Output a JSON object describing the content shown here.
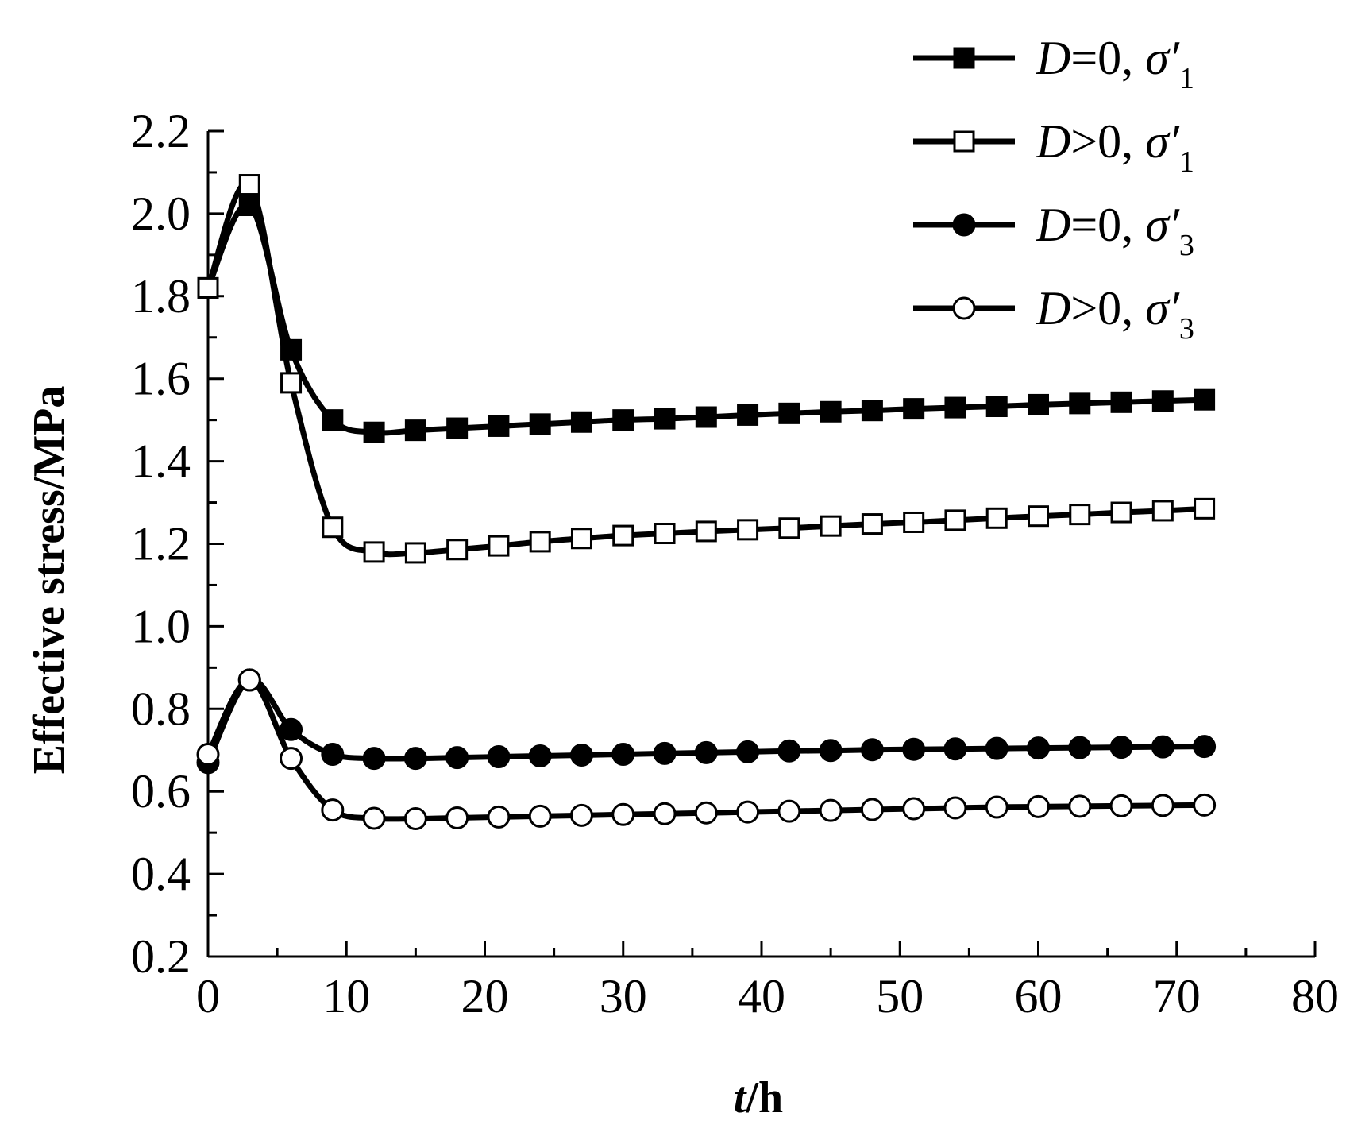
{
  "chart_data": {
    "type": "line",
    "xlabel_italic": "t",
    "xlabel_rest": "/h",
    "ylabel": "Effective stress/MPa",
    "xlim": [
      0,
      80
    ],
    "ylim": [
      0.2,
      2.2
    ],
    "xticks": [
      "0",
      "10",
      "20",
      "30",
      "40",
      "50",
      "60",
      "70",
      "80"
    ],
    "yticks": [
      "0.2",
      "0.4",
      "0.6",
      "0.8",
      "1.0",
      "1.2",
      "1.4",
      "1.6",
      "1.8",
      "2.0",
      "2.2"
    ],
    "grid": false,
    "legend_position": "top-right",
    "x": [
      0,
      3,
      6,
      9,
      12,
      15,
      18,
      21,
      24,
      27,
      30,
      33,
      36,
      39,
      42,
      45,
      48,
      51,
      54,
      57,
      60,
      63,
      66,
      69,
      72
    ],
    "series": [
      {
        "legend_var": "D",
        "legend_op": "=0, ",
        "legend_sym": "σ′",
        "legend_sub": "1",
        "marker": "square-filled",
        "values": [
          1.82,
          2.02,
          1.67,
          1.5,
          1.47,
          1.475,
          1.48,
          1.485,
          1.49,
          1.495,
          1.5,
          1.503,
          1.507,
          1.512,
          1.516,
          1.52,
          1.523,
          1.527,
          1.53,
          1.533,
          1.537,
          1.54,
          1.543,
          1.546,
          1.549
        ]
      },
      {
        "legend_var": "D",
        "legend_op": ">0, ",
        "legend_sym": "σ′",
        "legend_sub": "1",
        "marker": "square-open",
        "values": [
          1.82,
          2.07,
          1.59,
          1.24,
          1.18,
          1.178,
          1.186,
          1.195,
          1.205,
          1.213,
          1.22,
          1.225,
          1.23,
          1.234,
          1.238,
          1.243,
          1.248,
          1.252,
          1.257,
          1.262,
          1.267,
          1.271,
          1.276,
          1.28,
          1.285
        ]
      },
      {
        "legend_var": "D",
        "legend_op": "=0, ",
        "legend_sym": "σ′",
        "legend_sub": "3",
        "marker": "circle-filled",
        "values": [
          0.67,
          0.87,
          0.75,
          0.69,
          0.68,
          0.68,
          0.682,
          0.684,
          0.686,
          0.688,
          0.69,
          0.692,
          0.694,
          0.696,
          0.698,
          0.699,
          0.701,
          0.702,
          0.703,
          0.704,
          0.705,
          0.706,
          0.707,
          0.708,
          0.709
        ]
      },
      {
        "legend_var": "D",
        "legend_op": ">0, ",
        "legend_sym": "σ′",
        "legend_sub": "3",
        "marker": "circle-open",
        "values": [
          0.69,
          0.87,
          0.68,
          0.555,
          0.535,
          0.534,
          0.536,
          0.538,
          0.54,
          0.542,
          0.544,
          0.546,
          0.548,
          0.55,
          0.552,
          0.554,
          0.556,
          0.558,
          0.56,
          0.562,
          0.563,
          0.564,
          0.565,
          0.566,
          0.567
        ]
      }
    ]
  }
}
